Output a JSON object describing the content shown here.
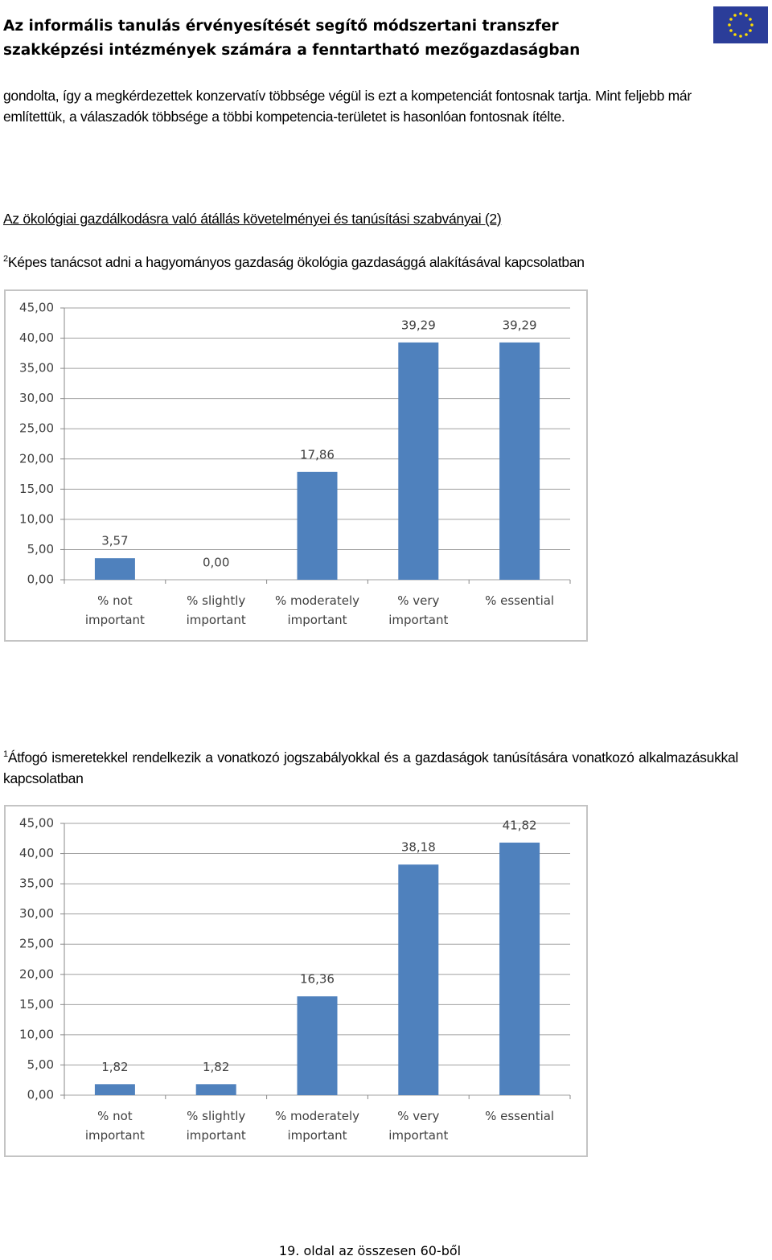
{
  "header": {
    "title": "Az informális tanulás érvényesítését segítő módszertani transzfer szakképzési intézmények számára a fenntartható mezőgazdaságban"
  },
  "body": {
    "paragraph": "gondolta, így a megkérdezettek konzervatív többsége végül is ezt a kompetenciát fontosnak tartja. Mint feljebb már említettük, a válaszadók többsége a többi kompetencia-területet is hasonlóan fontosnak ítélte.",
    "section_heading": "Az ökológiai gazdálkodásra való átállás követelményei és tanúsítási szabványai (2)",
    "captions": [
      {
        "marker": "2",
        "text": "Képes tanácsot adni a hagyományos gazdaság ökológia gazdasággá alakításával kapcsolatban"
      },
      {
        "marker": "1",
        "text": "Átfogó ismeretekkel rendelkezik a vonatkozó jogszabályokkal és a gazdaságok tanúsítására vonatkozó alkalmazásukkal kapcsolatban"
      }
    ]
  },
  "chart_data": [
    {
      "type": "bar",
      "categories": [
        "% not important",
        "% slightly important",
        "% moderately important",
        "% very important",
        "% essential"
      ],
      "values": [
        3.57,
        0,
        17.86,
        39.29,
        39.29
      ],
      "value_labels": [
        "3,57",
        "0,00",
        "17,86",
        "39,29",
        "39,29"
      ],
      "color": "#4f81bd",
      "ylim": [
        0,
        45
      ],
      "yticks": [
        {
          "value": 0,
          "label": "0,00"
        },
        {
          "value": 5,
          "label": "5,00"
        },
        {
          "value": 10,
          "label": "10,00"
        },
        {
          "value": 15,
          "label": "15,00"
        },
        {
          "value": 20,
          "label": "20,00"
        },
        {
          "value": 25,
          "label": "25,00"
        },
        {
          "value": 30,
          "label": "30,00"
        },
        {
          "value": 35,
          "label": "35,00"
        },
        {
          "value": 40,
          "label": "40,00"
        },
        {
          "value": 45,
          "label": "45,00"
        }
      ],
      "grid": true
    },
    {
      "type": "bar",
      "categories": [
        "% not important",
        "% slightly important",
        "% moderately important",
        "% very important",
        "% essential"
      ],
      "values": [
        1.82,
        1.82,
        16.36,
        38.18,
        41.82
      ],
      "value_labels": [
        "1,82",
        "1,82",
        "16,36",
        "38,18",
        "41,82"
      ],
      "color": "#4f81bd",
      "ylim": [
        0,
        45
      ],
      "yticks": [
        {
          "value": 0,
          "label": "0,00"
        },
        {
          "value": 5,
          "label": "5,00"
        },
        {
          "value": 10,
          "label": "10,00"
        },
        {
          "value": 15,
          "label": "15,00"
        },
        {
          "value": 20,
          "label": "20,00"
        },
        {
          "value": 25,
          "label": "25,00"
        },
        {
          "value": 30,
          "label": "30,00"
        },
        {
          "value": 35,
          "label": "35,00"
        },
        {
          "value": 40,
          "label": "40,00"
        },
        {
          "value": 45,
          "label": "45,00"
        }
      ],
      "grid": true
    }
  ],
  "footer": {
    "page": "19. oldal az összesen 60-ből"
  }
}
